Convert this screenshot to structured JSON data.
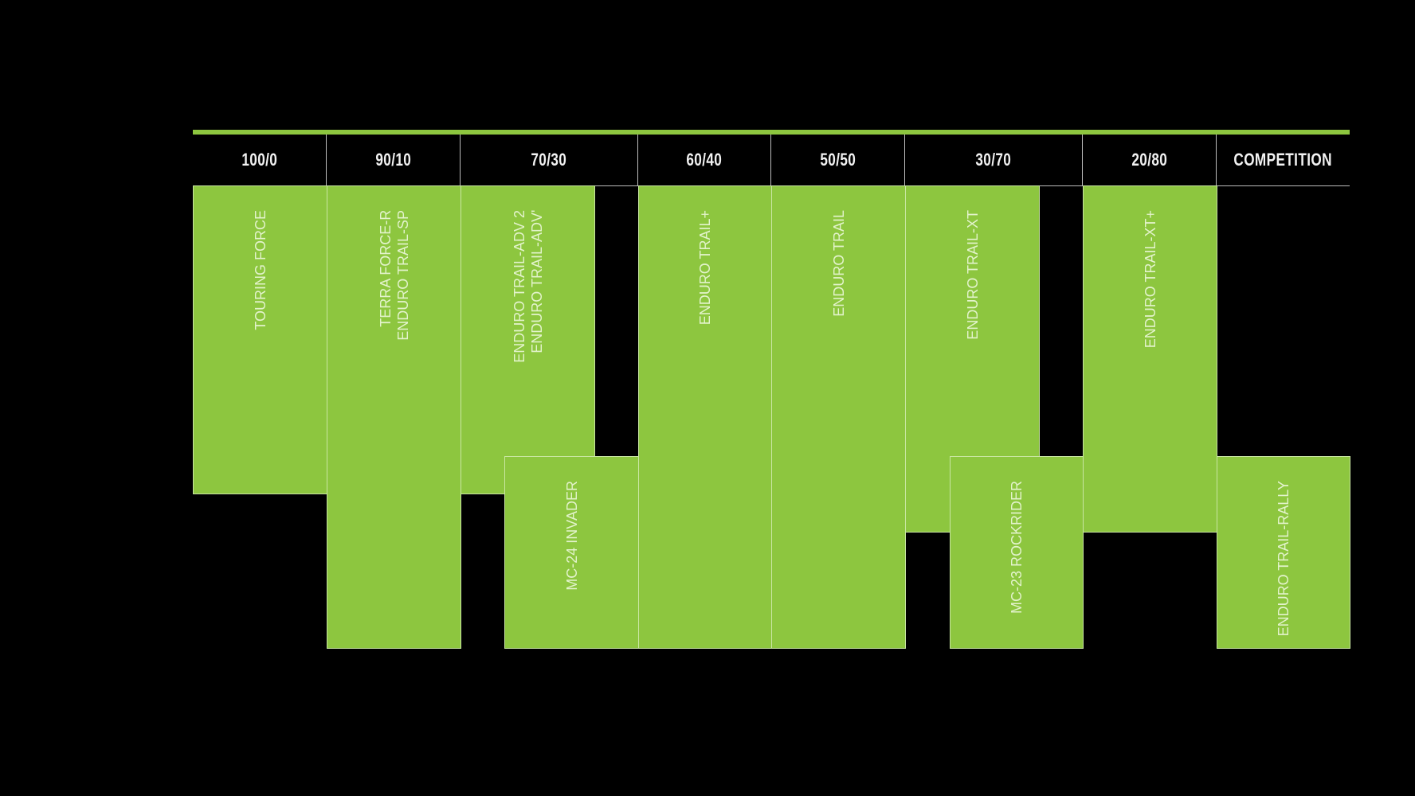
{
  "colors": {
    "background": "#000000",
    "accent": "#8dc63f",
    "label": "#e3f3cc"
  },
  "headers": [
    "100/0",
    "90/10",
    "70/30",
    "60/40",
    "50/50",
    "30/70",
    "20/80",
    "COMPETITION"
  ],
  "tyres": [
    {
      "name": "TOURING FORCE"
    },
    {
      "name": "TERRA FORCE-R\nENDURO TRAIL-SP"
    },
    {
      "name": "ENDURO TRAIL-ADV 2\nENDURO TRAIL-ADV'"
    },
    {
      "name": "MC-24 INVADER"
    },
    {
      "name": "ENDURO TRAIL+"
    },
    {
      "name": "ENDURO TRAIL"
    },
    {
      "name": "ENDURO TRAIL-XT"
    },
    {
      "name": "MC-23 ROCKRIDER"
    },
    {
      "name": "ENDURO TRAIL-XT+"
    },
    {
      "name": "ENDURO TRAIL-RALLY"
    }
  ]
}
